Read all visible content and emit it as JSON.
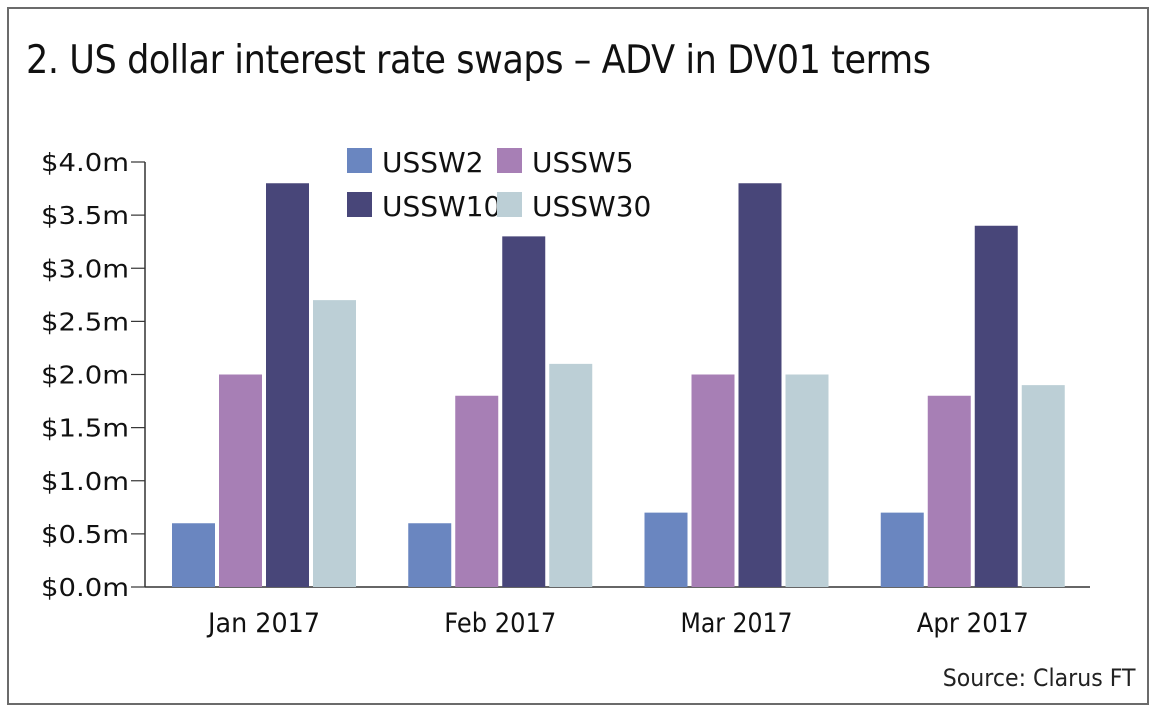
{
  "chart_data": {
    "type": "bar",
    "title": "2. US dollar interest rate swaps – ADV in DV01 terms",
    "xlabel": "",
    "ylabel": "",
    "ylim": [
      0,
      4.0
    ],
    "yticks": [
      "$0.0m",
      "$0.5m",
      "$1.0m",
      "$1.5m",
      "$2.0m",
      "$2.5m",
      "$3.0m",
      "$3.5m",
      "$4.0m"
    ],
    "categories": [
      "Jan 2017",
      "Feb 2017",
      "Mar 2017",
      "Apr 2017"
    ],
    "series": [
      {
        "name": "USSW2",
        "color": "#6a86c0",
        "values": [
          0.6,
          0.6,
          0.7,
          0.7
        ]
      },
      {
        "name": "USSW5",
        "color": "#a77fb5",
        "values": [
          2.0,
          1.8,
          2.0,
          1.8
        ]
      },
      {
        "name": "USSW10",
        "color": "#484679",
        "values": [
          3.8,
          3.3,
          3.8,
          3.4
        ]
      },
      {
        "name": "USSW30",
        "color": "#bccfd6",
        "values": [
          2.7,
          2.1,
          2.0,
          1.9
        ]
      }
    ],
    "legend_placement": "top-center",
    "grid": false,
    "source": "Source: Clarus FT"
  }
}
